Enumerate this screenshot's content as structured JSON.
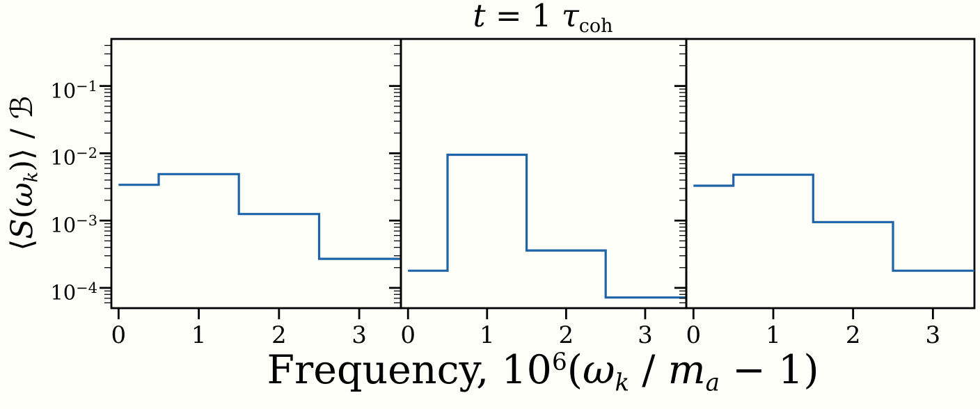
{
  "figure": {
    "background": "#fffffa",
    "text_color": "#000000",
    "title_parts": [
      {
        "t": "t",
        "s": "it"
      },
      {
        "t": " = 1 ",
        "s": "rm"
      },
      {
        "t": "τ",
        "s": "it"
      },
      {
        "t": "coh",
        "s": "sub"
      }
    ],
    "ylabel_parts": [
      {
        "t": "⟨",
        "s": "rm"
      },
      {
        "t": "S",
        "s": "it"
      },
      {
        "t": "(",
        "s": "rm"
      },
      {
        "t": "ω",
        "s": "it"
      },
      {
        "t": "k",
        "s": "subit"
      },
      {
        "t": ")⟩",
        "s": "rm"
      },
      {
        "t": " / ",
        "s": "rm"
      },
      {
        "t": "ℬ",
        "s": "rm"
      }
    ],
    "xlabel_parts": [
      {
        "t": "Frequency, 10",
        "s": "rm"
      },
      {
        "t": "6",
        "s": "sup"
      },
      {
        "t": "(",
        "s": "rm"
      },
      {
        "t": "ω",
        "s": "it"
      },
      {
        "t": "k",
        "s": "subit"
      },
      {
        "t": " / ",
        "s": "rm"
      },
      {
        "t": "m",
        "s": "it"
      },
      {
        "t": "a",
        "s": "subit"
      },
      {
        "t": " − 1)",
        "s": "rm"
      }
    ]
  },
  "chart_data": {
    "type": "step",
    "title": "t = 1 τ_coh",
    "xlabel": "Frequency, 10^6(ω_k/m_a − 1)",
    "ylabel": "⟨S(ω_k)⟩/ℬ",
    "yscale": "log",
    "grid": false,
    "legend": null,
    "xlim": [
      -0.09,
      3.52
    ],
    "ylim": [
      5e-05,
      0.5
    ],
    "xticks": [
      0,
      1,
      2,
      3
    ],
    "xtick_labels": [
      "0",
      "1",
      "2",
      "3"
    ],
    "ytick_base": "10",
    "ytick_exponents": [
      -1,
      -2,
      -3,
      -4
    ],
    "x_bin_edges": [
      0,
      0.5,
      1.5,
      2.5,
      3.52
    ],
    "axis_color": "#000000",
    "line_color": "#1e63a8",
    "panels": [
      {
        "name": "panel-1",
        "values": [
          0.0034,
          0.0049,
          0.00125,
          0.00027
        ]
      },
      {
        "name": "panel-2",
        "values": [
          0.00018,
          0.0095,
          0.00036,
          7.2e-05
        ]
      },
      {
        "name": "panel-3",
        "values": [
          0.0033,
          0.0048,
          0.00095,
          0.00018
        ]
      }
    ]
  }
}
